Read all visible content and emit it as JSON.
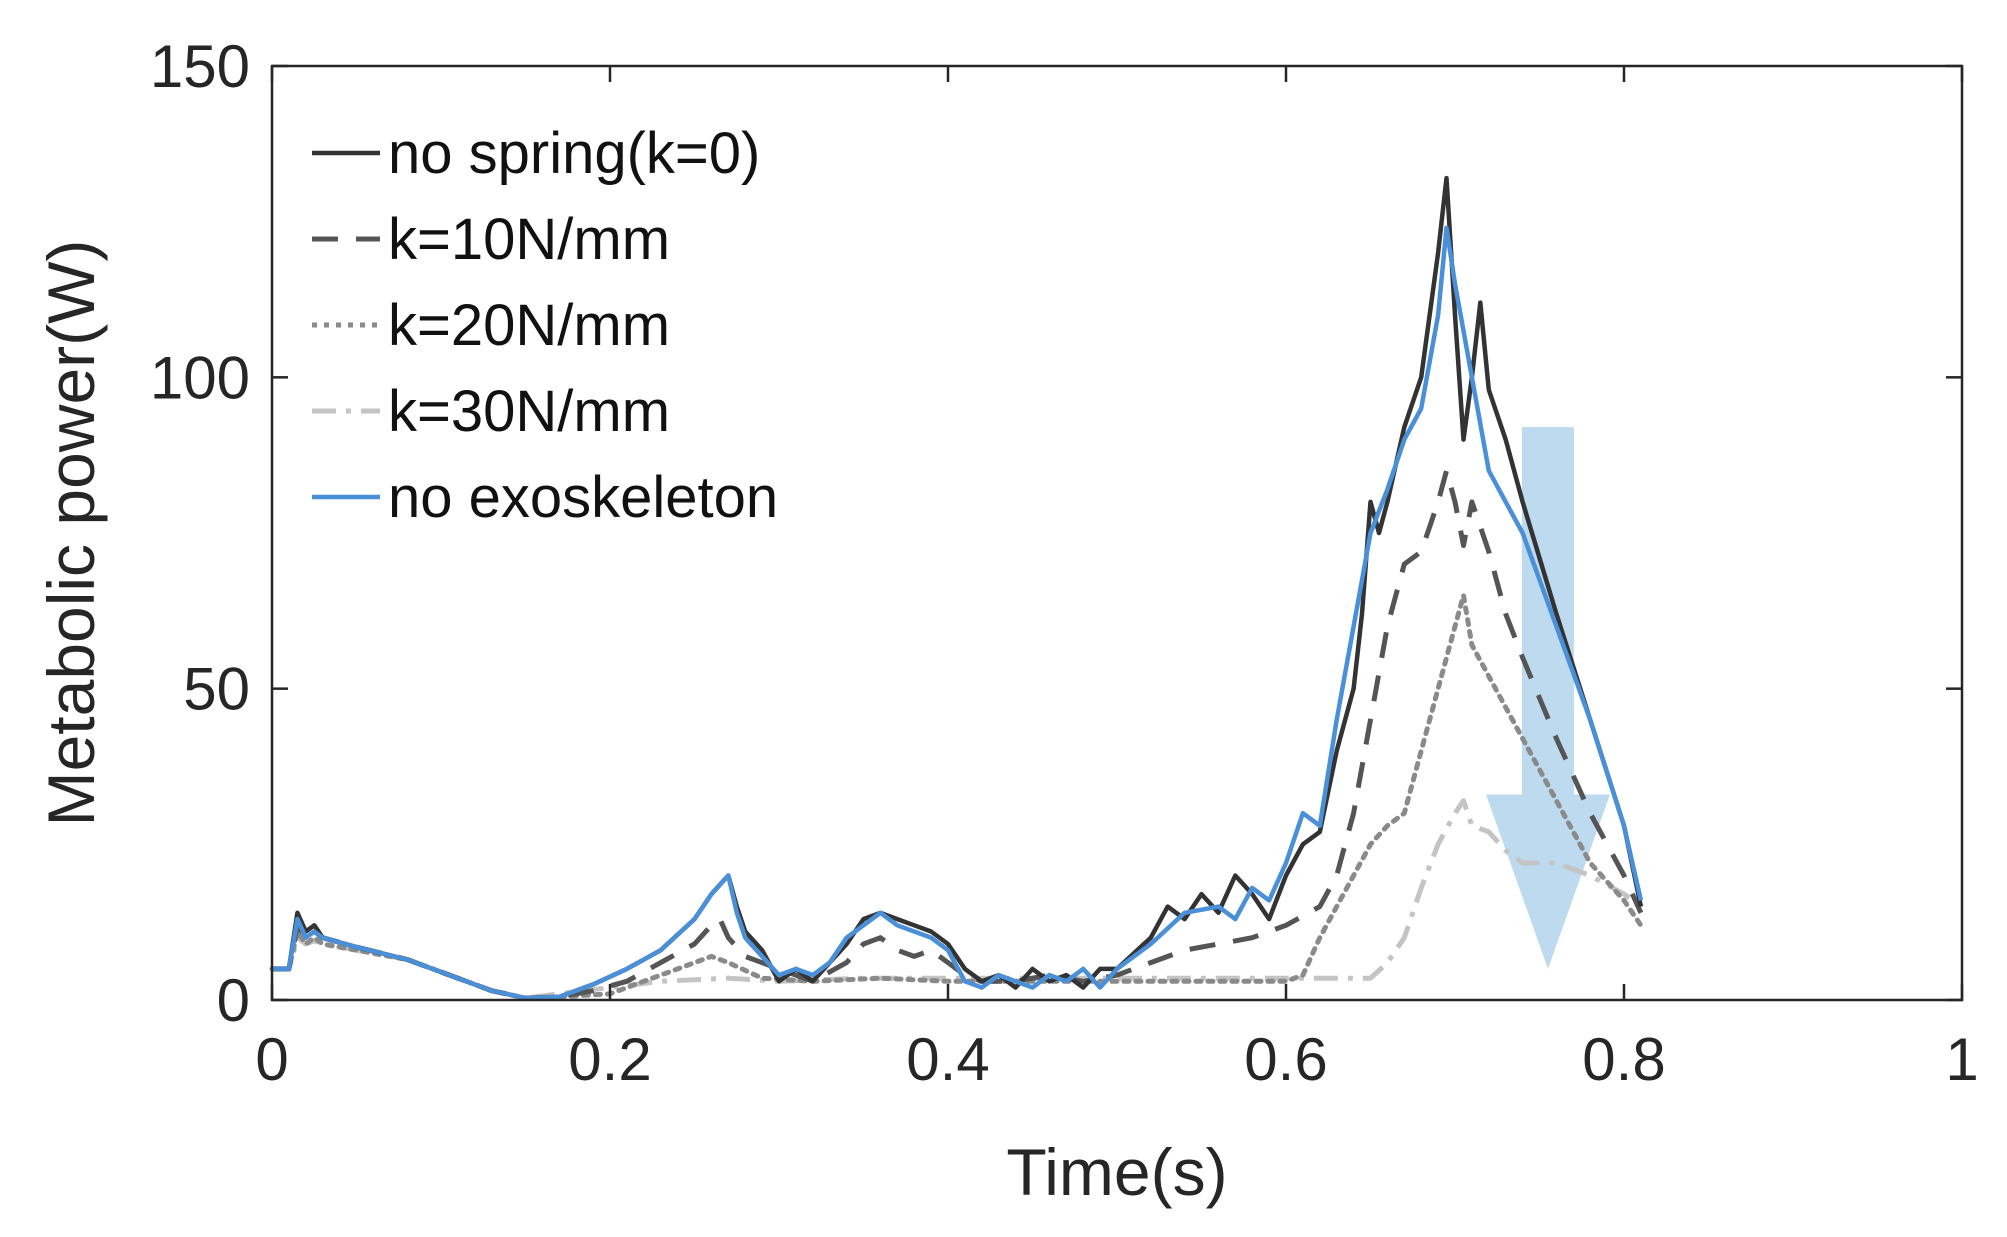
{
  "chart_data": {
    "type": "line",
    "title": "",
    "xlabel": "Time(s)",
    "ylabel": "Metabolic power(W)",
    "xlim": [
      0,
      1
    ],
    "ylim": [
      0,
      150
    ],
    "xticks": [
      0,
      0.2,
      0.4,
      0.6,
      0.8,
      1
    ],
    "xtick_labels": [
      "0",
      "0.2",
      "0.4",
      "0.6",
      "0.8",
      "1"
    ],
    "yticks": [
      0,
      50,
      100,
      150
    ],
    "ytick_labels": [
      "0",
      "50",
      "100",
      "150"
    ],
    "grid": false,
    "legend_position": "top-left",
    "series": [
      {
        "name": "no spring(k=0)",
        "color": "#333333",
        "style": "solid",
        "points": [
          [
            0,
            5
          ],
          [
            0.01,
            5
          ],
          [
            0.015,
            14
          ],
          [
            0.02,
            11
          ],
          [
            0.025,
            12
          ],
          [
            0.03,
            10
          ],
          [
            0.05,
            8.5
          ],
          [
            0.08,
            6.5
          ],
          [
            0.11,
            3.5
          ],
          [
            0.13,
            1.5
          ],
          [
            0.15,
            0.3
          ],
          [
            0.17,
            0.5
          ],
          [
            0.19,
            2.5
          ],
          [
            0.21,
            5
          ],
          [
            0.23,
            8
          ],
          [
            0.25,
            13
          ],
          [
            0.26,
            17
          ],
          [
            0.27,
            20
          ],
          [
            0.275,
            15
          ],
          [
            0.28,
            11
          ],
          [
            0.29,
            8
          ],
          [
            0.3,
            3
          ],
          [
            0.31,
            5
          ],
          [
            0.32,
            3
          ],
          [
            0.33,
            6
          ],
          [
            0.34,
            9
          ],
          [
            0.35,
            13
          ],
          [
            0.36,
            14
          ],
          [
            0.37,
            13
          ],
          [
            0.38,
            12
          ],
          [
            0.39,
            11
          ],
          [
            0.4,
            9
          ],
          [
            0.41,
            5
          ],
          [
            0.42,
            3
          ],
          [
            0.43,
            4
          ],
          [
            0.44,
            2
          ],
          [
            0.45,
            5
          ],
          [
            0.46,
            3
          ],
          [
            0.47,
            4
          ],
          [
            0.48,
            2
          ],
          [
            0.49,
            5
          ],
          [
            0.5,
            5
          ],
          [
            0.52,
            10
          ],
          [
            0.53,
            15
          ],
          [
            0.54,
            13
          ],
          [
            0.55,
            17
          ],
          [
            0.56,
            14
          ],
          [
            0.57,
            20
          ],
          [
            0.58,
            17
          ],
          [
            0.59,
            13
          ],
          [
            0.6,
            20
          ],
          [
            0.61,
            25
          ],
          [
            0.62,
            27
          ],
          [
            0.63,
            40
          ],
          [
            0.64,
            50
          ],
          [
            0.645,
            62
          ],
          [
            0.65,
            80
          ],
          [
            0.655,
            75
          ],
          [
            0.66,
            80
          ],
          [
            0.67,
            92
          ],
          [
            0.68,
            100
          ],
          [
            0.69,
            120
          ],
          [
            0.695,
            132
          ],
          [
            0.7,
            110
          ],
          [
            0.705,
            90
          ],
          [
            0.71,
            100
          ],
          [
            0.715,
            112
          ],
          [
            0.72,
            98
          ],
          [
            0.73,
            90
          ],
          [
            0.74,
            80
          ],
          [
            0.76,
            62
          ],
          [
            0.78,
            45
          ],
          [
            0.8,
            28
          ],
          [
            0.81,
            15
          ]
        ]
      },
      {
        "name": "k=10N/mm",
        "color": "#555555",
        "style": "dashed",
        "points": [
          [
            0,
            5
          ],
          [
            0.01,
            5
          ],
          [
            0.015,
            12
          ],
          [
            0.02,
            10
          ],
          [
            0.025,
            11
          ],
          [
            0.03,
            10
          ],
          [
            0.05,
            8.5
          ],
          [
            0.08,
            6.5
          ],
          [
            0.11,
            3.5
          ],
          [
            0.13,
            1.5
          ],
          [
            0.15,
            0.3
          ],
          [
            0.17,
            0.5
          ],
          [
            0.19,
            1.5
          ],
          [
            0.21,
            3
          ],
          [
            0.23,
            6
          ],
          [
            0.25,
            9
          ],
          [
            0.26,
            12
          ],
          [
            0.265,
            13
          ],
          [
            0.27,
            10
          ],
          [
            0.28,
            7
          ],
          [
            0.3,
            5
          ],
          [
            0.32,
            3
          ],
          [
            0.34,
            6
          ],
          [
            0.35,
            9
          ],
          [
            0.36,
            10
          ],
          [
            0.37,
            8
          ],
          [
            0.38,
            7
          ],
          [
            0.39,
            8
          ],
          [
            0.4,
            6
          ],
          [
            0.41,
            4
          ],
          [
            0.42,
            3
          ],
          [
            0.44,
            3
          ],
          [
            0.46,
            4
          ],
          [
            0.48,
            3
          ],
          [
            0.5,
            4
          ],
          [
            0.52,
            6
          ],
          [
            0.54,
            8
          ],
          [
            0.56,
            9
          ],
          [
            0.58,
            10
          ],
          [
            0.6,
            12
          ],
          [
            0.62,
            15
          ],
          [
            0.63,
            20
          ],
          [
            0.64,
            30
          ],
          [
            0.65,
            45
          ],
          [
            0.66,
            60
          ],
          [
            0.67,
            70
          ],
          [
            0.68,
            72
          ],
          [
            0.69,
            80
          ],
          [
            0.695,
            85
          ],
          [
            0.7,
            80
          ],
          [
            0.705,
            73
          ],
          [
            0.71,
            80
          ],
          [
            0.72,
            72
          ],
          [
            0.73,
            62
          ],
          [
            0.74,
            55
          ],
          [
            0.76,
            42
          ],
          [
            0.78,
            30
          ],
          [
            0.8,
            20
          ],
          [
            0.81,
            14
          ]
        ]
      },
      {
        "name": "k=20N/mm",
        "color": "#8a8a8a",
        "style": "dotted",
        "points": [
          [
            0,
            5
          ],
          [
            0.01,
            5
          ],
          [
            0.015,
            11
          ],
          [
            0.02,
            9
          ],
          [
            0.025,
            10
          ],
          [
            0.03,
            9
          ],
          [
            0.05,
            8
          ],
          [
            0.08,
            6.5
          ],
          [
            0.11,
            3.5
          ],
          [
            0.13,
            1.5
          ],
          [
            0.15,
            0.3
          ],
          [
            0.17,
            0.5
          ],
          [
            0.2,
            1
          ],
          [
            0.22,
            3
          ],
          [
            0.24,
            5
          ],
          [
            0.26,
            7
          ],
          [
            0.27,
            6
          ],
          [
            0.29,
            3.5
          ],
          [
            0.32,
            3
          ],
          [
            0.36,
            3.5
          ],
          [
            0.4,
            3
          ],
          [
            0.44,
            3
          ],
          [
            0.48,
            3
          ],
          [
            0.52,
            3
          ],
          [
            0.56,
            3
          ],
          [
            0.6,
            3
          ],
          [
            0.61,
            4
          ],
          [
            0.62,
            10
          ],
          [
            0.63,
            15
          ],
          [
            0.64,
            20
          ],
          [
            0.65,
            25
          ],
          [
            0.66,
            28
          ],
          [
            0.67,
            30
          ],
          [
            0.68,
            40
          ],
          [
            0.69,
            50
          ],
          [
            0.7,
            60
          ],
          [
            0.705,
            65
          ],
          [
            0.71,
            57
          ],
          [
            0.72,
            52
          ],
          [
            0.74,
            42
          ],
          [
            0.76,
            32
          ],
          [
            0.78,
            22
          ],
          [
            0.8,
            16
          ],
          [
            0.81,
            12
          ]
        ]
      },
      {
        "name": "k=30N/mm",
        "color": "#c4c4c4",
        "style": "dashdot",
        "points": [
          [
            0,
            5
          ],
          [
            0.01,
            5
          ],
          [
            0.015,
            10
          ],
          [
            0.02,
            9
          ],
          [
            0.025,
            9.5
          ],
          [
            0.03,
            9
          ],
          [
            0.05,
            8
          ],
          [
            0.08,
            6.5
          ],
          [
            0.11,
            3.5
          ],
          [
            0.13,
            1.5
          ],
          [
            0.15,
            0.3
          ],
          [
            0.17,
            1
          ],
          [
            0.2,
            2
          ],
          [
            0.23,
            3
          ],
          [
            0.27,
            3.5
          ],
          [
            0.3,
            3
          ],
          [
            0.35,
            3.5
          ],
          [
            0.4,
            3.5
          ],
          [
            0.45,
            3.5
          ],
          [
            0.5,
            3.5
          ],
          [
            0.55,
            3.5
          ],
          [
            0.6,
            3.5
          ],
          [
            0.65,
            3.5
          ],
          [
            0.66,
            6
          ],
          [
            0.67,
            10
          ],
          [
            0.68,
            18
          ],
          [
            0.69,
            25
          ],
          [
            0.7,
            30
          ],
          [
            0.705,
            32
          ],
          [
            0.71,
            28
          ],
          [
            0.72,
            27
          ],
          [
            0.73,
            24
          ],
          [
            0.74,
            22
          ],
          [
            0.76,
            22
          ],
          [
            0.78,
            20
          ],
          [
            0.8,
            17
          ],
          [
            0.81,
            15
          ]
        ]
      },
      {
        "name": "no exoskeleton",
        "color": "#4a90d9",
        "style": "solid",
        "points": [
          [
            0,
            5
          ],
          [
            0.01,
            5
          ],
          [
            0.015,
            13
          ],
          [
            0.02,
            10
          ],
          [
            0.025,
            11
          ],
          [
            0.03,
            10
          ],
          [
            0.05,
            8.5
          ],
          [
            0.08,
            6.5
          ],
          [
            0.11,
            3.5
          ],
          [
            0.13,
            1.5
          ],
          [
            0.15,
            0.3
          ],
          [
            0.17,
            0.5
          ],
          [
            0.19,
            2.5
          ],
          [
            0.21,
            5
          ],
          [
            0.23,
            8
          ],
          [
            0.25,
            13
          ],
          [
            0.26,
            17
          ],
          [
            0.27,
            20
          ],
          [
            0.275,
            14
          ],
          [
            0.28,
            10
          ],
          [
            0.29,
            7
          ],
          [
            0.3,
            4
          ],
          [
            0.31,
            5
          ],
          [
            0.32,
            4
          ],
          [
            0.33,
            6
          ],
          [
            0.34,
            10
          ],
          [
            0.35,
            12
          ],
          [
            0.36,
            14
          ],
          [
            0.37,
            12
          ],
          [
            0.38,
            11
          ],
          [
            0.39,
            10
          ],
          [
            0.4,
            8
          ],
          [
            0.41,
            3
          ],
          [
            0.42,
            2
          ],
          [
            0.43,
            4
          ],
          [
            0.44,
            3
          ],
          [
            0.45,
            2
          ],
          [
            0.46,
            4
          ],
          [
            0.47,
            3
          ],
          [
            0.48,
            5
          ],
          [
            0.49,
            2
          ],
          [
            0.5,
            5
          ],
          [
            0.52,
            9
          ],
          [
            0.54,
            14
          ],
          [
            0.56,
            15
          ],
          [
            0.57,
            13
          ],
          [
            0.58,
            18
          ],
          [
            0.59,
            16
          ],
          [
            0.6,
            22
          ],
          [
            0.61,
            30
          ],
          [
            0.62,
            28
          ],
          [
            0.63,
            45
          ],
          [
            0.64,
            60
          ],
          [
            0.65,
            75
          ],
          [
            0.66,
            82
          ],
          [
            0.67,
            90
          ],
          [
            0.68,
            95
          ],
          [
            0.69,
            110
          ],
          [
            0.695,
            124
          ],
          [
            0.7,
            115
          ],
          [
            0.71,
            100
          ],
          [
            0.72,
            85
          ],
          [
            0.73,
            80
          ],
          [
            0.74,
            75
          ],
          [
            0.76,
            60
          ],
          [
            0.78,
            45
          ],
          [
            0.8,
            28
          ],
          [
            0.81,
            16
          ]
        ]
      }
    ],
    "annotation": {
      "type": "arrow",
      "direction": "down",
      "color": "#b3d4ec",
      "from": [
        0.755,
        92
      ],
      "to": [
        0.755,
        5
      ]
    }
  }
}
